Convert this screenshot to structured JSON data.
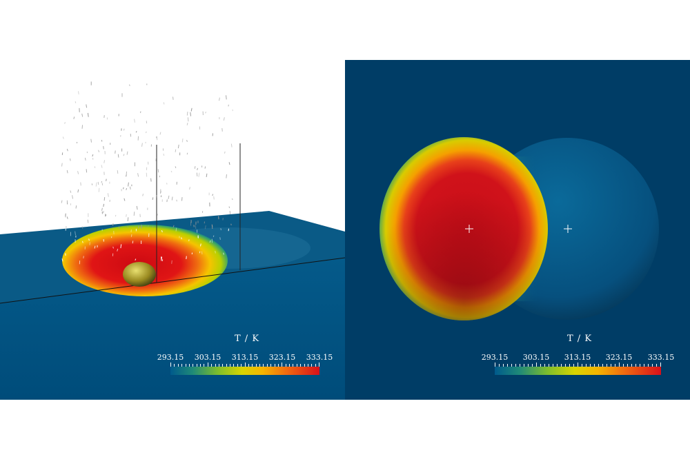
{
  "colorbars": [
    {
      "title": "T / K",
      "ticks": [
        "293.15",
        "303.15",
        "313.15",
        "323.15",
        "333.15"
      ],
      "range": [
        293.15,
        333.15
      ]
    },
    {
      "title": "T / K",
      "ticks": [
        "293.15",
        "303.15",
        "313.15",
        "323.15",
        "333.15"
      ],
      "range": [
        293.15,
        333.15
      ]
    }
  ],
  "colors": {
    "background_field": "#005a8c",
    "dark_field": "#003d66",
    "hot": "#d0101a",
    "warm": "#f5a000",
    "mid": "#c8d400",
    "cool": "#2aa06a"
  }
}
